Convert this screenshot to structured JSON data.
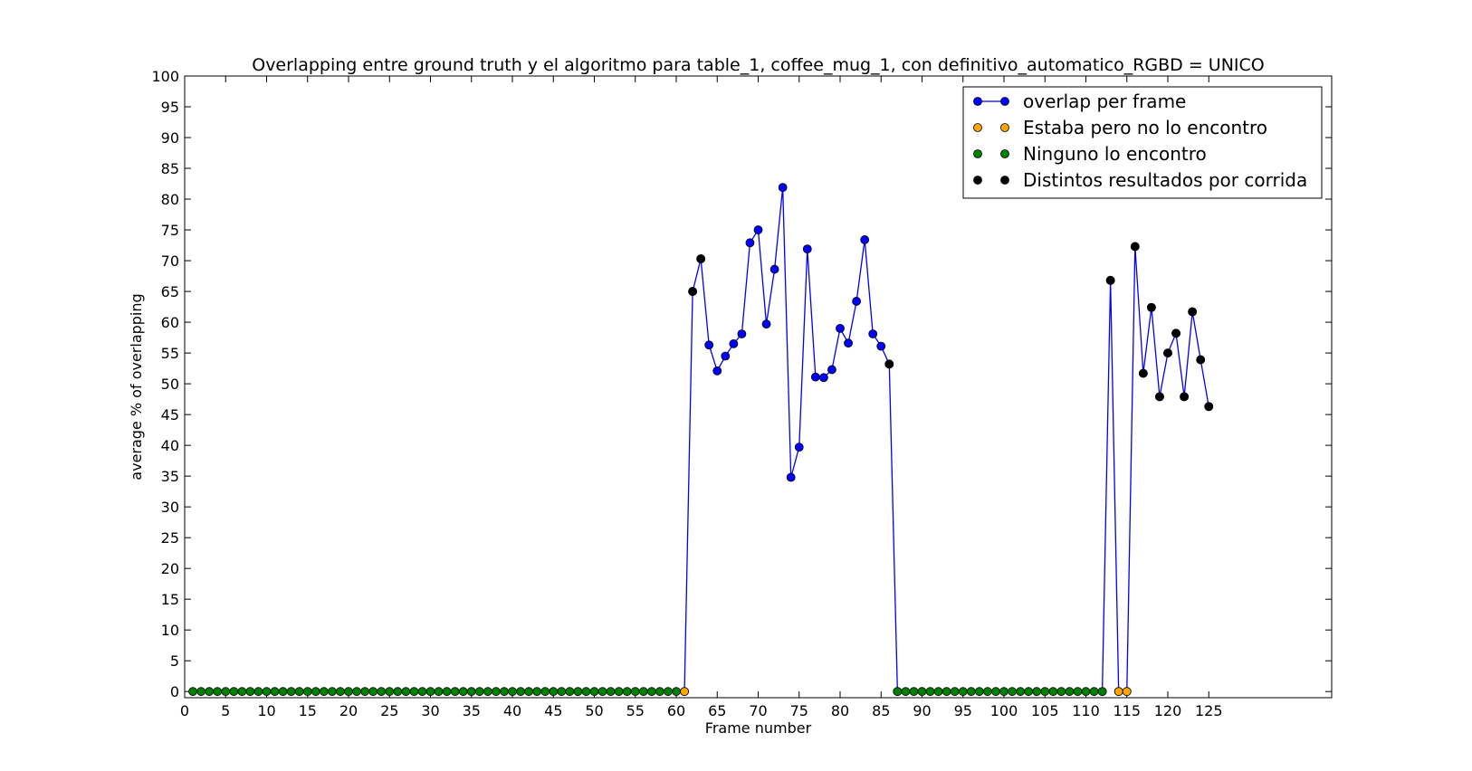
{
  "chart_data": {
    "type": "line",
    "title": "Overlapping entre ground truth y el algoritmo para table_1, coffee_mug_1, con definitivo_automatico_RGBD = UNICO",
    "xlabel": "Frame number",
    "ylabel": "average % of overlapping",
    "xlim": [
      0,
      140
    ],
    "ylim": [
      -1,
      100
    ],
    "x_ticks": [
      0,
      5,
      10,
      15,
      20,
      25,
      30,
      35,
      40,
      45,
      50,
      55,
      60,
      65,
      70,
      75,
      80,
      85,
      90,
      95,
      100,
      105,
      110,
      115,
      120,
      125
    ],
    "y_ticks": [
      0,
      5,
      10,
      15,
      20,
      25,
      30,
      35,
      40,
      45,
      50,
      55,
      60,
      65,
      70,
      75,
      80,
      85,
      90,
      95,
      100
    ],
    "grid": false,
    "legend_position": "top-right",
    "colors": {
      "line": "#0000ff",
      "overlap_marker": "#0000ff",
      "not_found": "#ffa500",
      "none_found": "#008000",
      "varied": "#000000"
    },
    "series": [
      {
        "name": "overlap per frame",
        "style": "line+marker",
        "segments": [
          {
            "x": [
              61,
              62,
              63,
              64,
              65,
              66,
              67,
              68,
              69,
              70,
              71,
              72,
              73,
              74,
              75,
              76,
              77,
              78,
              79,
              80,
              81,
              82,
              83,
              84,
              85,
              86,
              87
            ],
            "y": [
              0,
              65,
              70.3,
              56.3,
              52.1,
              54.5,
              56.5,
              58.1,
              72.9,
              75.0,
              59.7,
              68.6,
              81.9,
              34.8,
              39.7,
              71.9,
              51.1,
              51.0,
              52.3,
              59.0,
              56.6,
              63.4,
              73.4,
              58.1,
              56.1,
              53.2,
              0
            ]
          },
          {
            "x": [
              112,
              113,
              114,
              115,
              116,
              117,
              118,
              119,
              120,
              121,
              122,
              123,
              124,
              125
            ],
            "y": [
              0,
              66.8,
              0,
              0,
              72.3,
              51.7,
              62.4,
              47.9,
              55.0,
              58.2,
              47.9,
              61.7,
              53.9,
              46.3
            ]
          }
        ]
      },
      {
        "name": "Estaba pero no lo encontro",
        "style": "marker",
        "x": [
          61,
          114,
          115
        ],
        "y": [
          0,
          0,
          0
        ]
      },
      {
        "name": "Ninguno lo encontro",
        "style": "marker",
        "x": [
          1,
          2,
          3,
          4,
          5,
          6,
          7,
          8,
          9,
          10,
          11,
          12,
          13,
          14,
          15,
          16,
          17,
          18,
          19,
          20,
          21,
          22,
          23,
          24,
          25,
          26,
          27,
          28,
          29,
          30,
          31,
          32,
          33,
          34,
          35,
          36,
          37,
          38,
          39,
          40,
          41,
          42,
          43,
          44,
          45,
          46,
          47,
          48,
          49,
          50,
          51,
          52,
          53,
          54,
          55,
          56,
          57,
          58,
          59,
          60,
          87,
          88,
          89,
          90,
          91,
          92,
          93,
          94,
          95,
          96,
          97,
          98,
          99,
          100,
          101,
          102,
          103,
          104,
          105,
          106,
          107,
          108,
          109,
          110,
          111,
          112
        ],
        "y": [
          0,
          0,
          0,
          0,
          0,
          0,
          0,
          0,
          0,
          0,
          0,
          0,
          0,
          0,
          0,
          0,
          0,
          0,
          0,
          0,
          0,
          0,
          0,
          0,
          0,
          0,
          0,
          0,
          0,
          0,
          0,
          0,
          0,
          0,
          0,
          0,
          0,
          0,
          0,
          0,
          0,
          0,
          0,
          0,
          0,
          0,
          0,
          0,
          0,
          0,
          0,
          0,
          0,
          0,
          0,
          0,
          0,
          0,
          0,
          0,
          0,
          0,
          0,
          0,
          0,
          0,
          0,
          0,
          0,
          0,
          0,
          0,
          0,
          0,
          0,
          0,
          0,
          0,
          0,
          0,
          0,
          0,
          0,
          0,
          0,
          0
        ]
      },
      {
        "name": "Distintos resultados por corrida",
        "style": "marker",
        "x": [
          62,
          63,
          86,
          113,
          116,
          117,
          118,
          119,
          120,
          121,
          122,
          123,
          124,
          125
        ],
        "y": [
          65,
          70.3,
          53.2,
          66.8,
          72.3,
          51.7,
          62.4,
          47.9,
          55.0,
          58.2,
          47.9,
          61.7,
          53.9,
          46.3
        ]
      }
    ]
  }
}
